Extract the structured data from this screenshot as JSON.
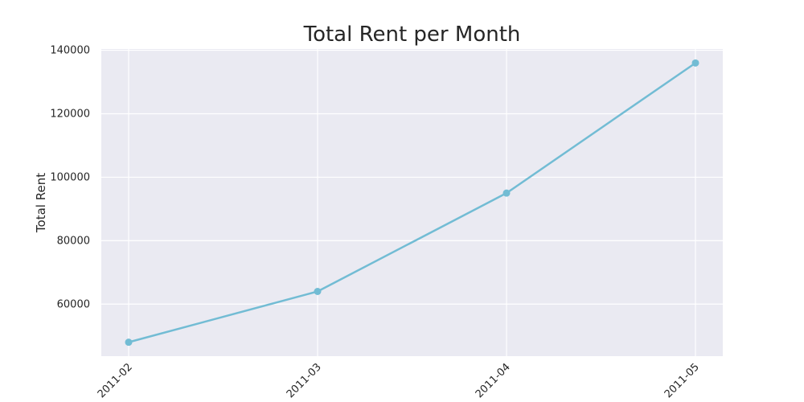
{
  "chart_data": {
    "type": "line",
    "title": "Total Rent per Month",
    "xlabel": "",
    "ylabel": "Total Rent",
    "categories": [
      "2011-02",
      "2011-03",
      "2011-04",
      "2011-05"
    ],
    "series": [
      {
        "values": [
          48000,
          64000,
          95000,
          136000
        ],
        "color": "#72bcd4"
      }
    ],
    "yticks": [
      60000,
      80000,
      100000,
      120000,
      140000
    ],
    "ylim": [
      43600,
      140400
    ],
    "grid": true,
    "background": "#eaeaf2",
    "grid_color": "#ffffff",
    "marker": "circle"
  }
}
